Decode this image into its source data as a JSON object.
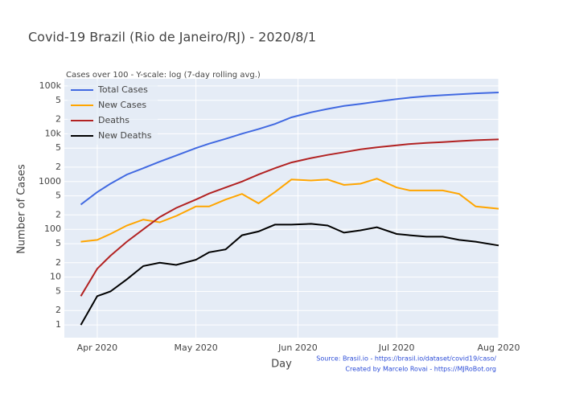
{
  "chart_data": {
    "type": "line",
    "title": "Covid-19 Brazil (Rio de Janeiro/RJ) - 2020/8/1",
    "subtitle": "Cases over 100 - Y-scale: log (7-day rolling avg.)",
    "x_label": "Day",
    "y_label": "Number of Cases",
    "annotations": [
      "Source: Brasil.io - https://brasil.io/dataset/covid19/caso/",
      "Created by Marcelo Rovai - https://MJRoBot.org"
    ],
    "log_y": true,
    "grid": true,
    "legend": "top-left",
    "x": [
      "2020-03-27",
      "2020-04-01",
      "2020-04-05",
      "2020-04-10",
      "2020-04-15",
      "2020-04-20",
      "2020-04-25",
      "2020-05-01",
      "2020-05-05",
      "2020-05-10",
      "2020-05-15",
      "2020-05-20",
      "2020-05-25",
      "2020-05-30",
      "2020-06-05",
      "2020-06-10",
      "2020-06-15",
      "2020-06-20",
      "2020-06-25",
      "2020-07-01",
      "2020-07-05",
      "2020-07-10",
      "2020-07-15",
      "2020-07-20",
      "2020-07-25",
      "2020-08-01"
    ],
    "xlim": [
      "2020-03-22",
      "2020-08-01"
    ],
    "xticks": [
      {
        "value": "2020-04-01",
        "label": "Apr 2020"
      },
      {
        "value": "2020-05-01",
        "label": "May 2020"
      },
      {
        "value": "2020-06-01",
        "label": "Jun 2020"
      },
      {
        "value": "2020-07-01",
        "label": "Jul 2020"
      },
      {
        "value": "2020-08-01",
        "label": "Aug 2020"
      }
    ],
    "ylim": [
      0.54,
      141000
    ],
    "yticks": [
      1,
      2,
      5,
      10,
      {
        "value": 20,
        "label": "2"
      },
      {
        "value": 50,
        "label": "5"
      },
      100,
      {
        "value": 200,
        "label": "2"
      },
      {
        "value": 500,
        "label": "5"
      },
      1000,
      {
        "value": 2000,
        "label": "2"
      },
      {
        "value": 5000,
        "label": "5"
      },
      {
        "value": 10000,
        "label": "10k"
      },
      {
        "value": 20000,
        "label": "2"
      },
      {
        "value": 50000,
        "label": "5"
      },
      {
        "value": 100000,
        "label": "100k"
      }
    ],
    "series": [
      {
        "name": "Total Cases",
        "color": "#4169e1",
        "values": [
          330,
          600,
          900,
          1400,
          1900,
          2600,
          3500,
          5000,
          6200,
          7800,
          10000,
          12500,
          16000,
          22000,
          28000,
          33000,
          38000,
          42000,
          47000,
          53000,
          57000,
          61000,
          64000,
          67000,
          70000,
          73000
        ]
      },
      {
        "name": "New Cases",
        "color": "#ffa500",
        "values": [
          55,
          60,
          80,
          120,
          160,
          140,
          190,
          300,
          300,
          420,
          550,
          350,
          600,
          1100,
          1050,
          1100,
          850,
          900,
          1150,
          750,
          650,
          650,
          650,
          550,
          300,
          270
        ]
      },
      {
        "name": "Deaths",
        "color": "#b22222",
        "values": [
          4,
          15,
          28,
          55,
          100,
          180,
          280,
          420,
          560,
          750,
          1000,
          1400,
          1900,
          2500,
          3100,
          3600,
          4100,
          4700,
          5200,
          5700,
          6100,
          6400,
          6700,
          7000,
          7300,
          7600
        ]
      },
      {
        "name": "New Deaths",
        "color": "#000000",
        "values": [
          1,
          4,
          5,
          9,
          17,
          20,
          18,
          23,
          33,
          38,
          75,
          90,
          125,
          125,
          130,
          120,
          85,
          95,
          110,
          80,
          75,
          70,
          70,
          60,
          55,
          46
        ]
      }
    ]
  }
}
